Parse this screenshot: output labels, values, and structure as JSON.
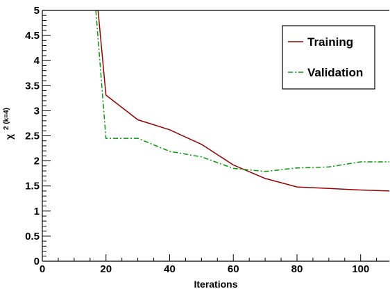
{
  "chart_data": {
    "type": "line",
    "title": "",
    "xlabel": "Iterations",
    "ylabel": "χ² (k=4)",
    "ylabel_main": "χ",
    "ylabel_sup": "2 (k=4)",
    "xlim": [
      0,
      109
    ],
    "ylim": [
      0,
      5
    ],
    "xticks": [
      0,
      20,
      40,
      60,
      80,
      100
    ],
    "yticks": [
      0,
      0.5,
      1,
      1.5,
      2,
      2.5,
      3,
      3.5,
      4,
      4.5,
      5
    ],
    "ytick_labels": [
      "0",
      "0.5",
      "1",
      "1.5",
      "2",
      "2.5",
      "3",
      "3.5",
      "4",
      "4.5",
      "5"
    ],
    "grid": false,
    "legend_position": "top-right",
    "series": [
      {
        "name": "Training",
        "color": "#990000",
        "style": "solid",
        "x": [
          17.5,
          20,
          30,
          40,
          50,
          60,
          70,
          80,
          90,
          100,
          109
        ],
        "y": [
          5.0,
          3.31,
          2.82,
          2.62,
          2.33,
          1.92,
          1.65,
          1.48,
          1.45,
          1.42,
          1.4
        ]
      },
      {
        "name": "Validation",
        "color": "#009900",
        "style": "dash-dot",
        "x": [
          16.8,
          20,
          30,
          40,
          50,
          60,
          70,
          80,
          90,
          100,
          109
        ],
        "y": [
          5.0,
          2.45,
          2.45,
          2.19,
          2.08,
          1.85,
          1.79,
          1.86,
          1.88,
          1.98,
          1.98
        ]
      }
    ]
  }
}
